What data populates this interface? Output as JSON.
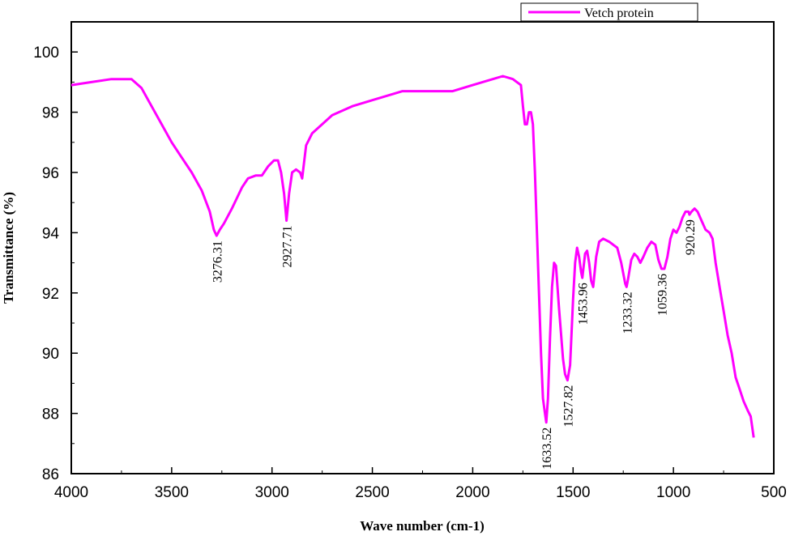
{
  "chart_data": {
    "type": "line",
    "title": "",
    "xlabel": "Wave number (cm-1)",
    "ylabel": "Transmittance (%)",
    "xlim": [
      4000,
      500
    ],
    "ylim": [
      86,
      101
    ],
    "x_reversed": true,
    "xticks": [
      4000,
      3500,
      3000,
      2500,
      2000,
      1500,
      1000,
      500
    ],
    "yticks": [
      86,
      88,
      90,
      92,
      94,
      96,
      98,
      100
    ],
    "grid": false,
    "legend_position": "top-right",
    "series": [
      {
        "name": "Vetch protein",
        "color": "#ff00ff",
        "points": [
          [
            4000,
            98.9
          ],
          [
            3900,
            99.0
          ],
          [
            3800,
            99.1
          ],
          [
            3700,
            99.1
          ],
          [
            3650,
            98.8
          ],
          [
            3600,
            98.2
          ],
          [
            3550,
            97.6
          ],
          [
            3500,
            97.0
          ],
          [
            3450,
            96.5
          ],
          [
            3400,
            96.0
          ],
          [
            3350,
            95.4
          ],
          [
            3310,
            94.7
          ],
          [
            3290,
            94.1
          ],
          [
            3276.31,
            93.9
          ],
          [
            3260,
            94.1
          ],
          [
            3240,
            94.3
          ],
          [
            3200,
            94.8
          ],
          [
            3150,
            95.5
          ],
          [
            3120,
            95.8
          ],
          [
            3080,
            95.9
          ],
          [
            3050,
            95.9
          ],
          [
            3020,
            96.2
          ],
          [
            2990,
            96.4
          ],
          [
            2970,
            96.4
          ],
          [
            2955,
            96.0
          ],
          [
            2940,
            95.3
          ],
          [
            2927.71,
            94.4
          ],
          [
            2915,
            95.3
          ],
          [
            2900,
            96.0
          ],
          [
            2880,
            96.1
          ],
          [
            2860,
            96.0
          ],
          [
            2850,
            95.8
          ],
          [
            2830,
            96.9
          ],
          [
            2800,
            97.3
          ],
          [
            2700,
            97.9
          ],
          [
            2600,
            98.2
          ],
          [
            2500,
            98.4
          ],
          [
            2400,
            98.6
          ],
          [
            2350,
            98.7
          ],
          [
            2300,
            98.7
          ],
          [
            2200,
            98.7
          ],
          [
            2100,
            98.7
          ],
          [
            2000,
            98.9
          ],
          [
            1900,
            99.1
          ],
          [
            1850,
            99.2
          ],
          [
            1800,
            99.1
          ],
          [
            1760,
            98.9
          ],
          [
            1750,
            98.2
          ],
          [
            1740,
            97.6
          ],
          [
            1730,
            97.6
          ],
          [
            1720,
            98.0
          ],
          [
            1710,
            98.0
          ],
          [
            1700,
            97.6
          ],
          [
            1690,
            96.0
          ],
          [
            1680,
            94.0
          ],
          [
            1670,
            92.0
          ],
          [
            1660,
            90.0
          ],
          [
            1650,
            88.5
          ],
          [
            1640,
            88.0
          ],
          [
            1633.52,
            87.7
          ],
          [
            1625,
            88.5
          ],
          [
            1615,
            90.5
          ],
          [
            1605,
            92.2
          ],
          [
            1595,
            93.0
          ],
          [
            1585,
            92.9
          ],
          [
            1570,
            91.5
          ],
          [
            1550,
            89.8
          ],
          [
            1540,
            89.3
          ],
          [
            1527.82,
            89.1
          ],
          [
            1515,
            89.6
          ],
          [
            1500,
            91.8
          ],
          [
            1490,
            93.0
          ],
          [
            1480,
            93.5
          ],
          [
            1470,
            93.2
          ],
          [
            1460,
            92.7
          ],
          [
            1453.96,
            92.5
          ],
          [
            1440,
            93.3
          ],
          [
            1430,
            93.4
          ],
          [
            1420,
            93.0
          ],
          [
            1410,
            92.4
          ],
          [
            1400,
            92.2
          ],
          [
            1385,
            93.2
          ],
          [
            1370,
            93.7
          ],
          [
            1350,
            93.8
          ],
          [
            1320,
            93.7
          ],
          [
            1300,
            93.6
          ],
          [
            1280,
            93.5
          ],
          [
            1260,
            93.0
          ],
          [
            1240,
            92.3
          ],
          [
            1233.32,
            92.2
          ],
          [
            1225,
            92.5
          ],
          [
            1210,
            93.1
          ],
          [
            1195,
            93.3
          ],
          [
            1180,
            93.2
          ],
          [
            1165,
            93.0
          ],
          [
            1150,
            93.2
          ],
          [
            1130,
            93.5
          ],
          [
            1110,
            93.7
          ],
          [
            1090,
            93.6
          ],
          [
            1075,
            93.1
          ],
          [
            1059.36,
            92.8
          ],
          [
            1045,
            92.8
          ],
          [
            1030,
            93.2
          ],
          [
            1015,
            93.8
          ],
          [
            1000,
            94.1
          ],
          [
            985,
            94.0
          ],
          [
            970,
            94.2
          ],
          [
            955,
            94.5
          ],
          [
            940,
            94.7
          ],
          [
            925,
            94.7
          ],
          [
            920.29,
            94.6
          ],
          [
            910,
            94.7
          ],
          [
            895,
            94.8
          ],
          [
            880,
            94.7
          ],
          [
            860,
            94.4
          ],
          [
            840,
            94.1
          ],
          [
            820,
            94.0
          ],
          [
            805,
            93.8
          ],
          [
            790,
            93.0
          ],
          [
            770,
            92.2
          ],
          [
            750,
            91.4
          ],
          [
            730,
            90.6
          ],
          [
            710,
            90.0
          ],
          [
            690,
            89.2
          ],
          [
            670,
            88.8
          ],
          [
            650,
            88.4
          ],
          [
            630,
            88.1
          ],
          [
            615,
            87.9
          ],
          [
            600,
            87.2
          ]
        ]
      }
    ],
    "annotations": [
      {
        "text": "3276.31",
        "x": 3276.31,
        "y": 93.9
      },
      {
        "text": "2927.71",
        "x": 2927.71,
        "y": 94.4
      },
      {
        "text": "1633.52",
        "x": 1633.52,
        "y": 87.7
      },
      {
        "text": "1527.82",
        "x": 1527.82,
        "y": 89.1
      },
      {
        "text": "1453.96",
        "x": 1453.96,
        "y": 92.5
      },
      {
        "text": "1233.32",
        "x": 1233.32,
        "y": 92.2
      },
      {
        "text": "1059.36",
        "x": 1059.36,
        "y": 92.8
      },
      {
        "text": "920.29",
        "x": 920.29,
        "y": 94.6
      }
    ]
  }
}
